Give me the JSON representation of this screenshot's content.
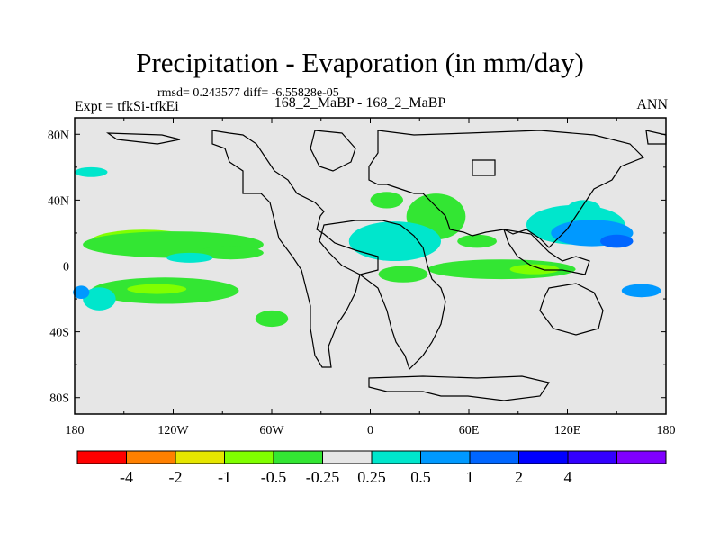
{
  "title": "Precipitation - Evaporation (in mm/day)",
  "stats_line": "rmsd= 0.243577 diff= -6.55828e-05",
  "subtitle": "168_2_MaBP - 168_2_MaBP",
  "experiment": "Expt = tfkSi-tfkEi",
  "season": "ANN",
  "colors": {
    "background": "#e6e6e6",
    "coast": "#000000"
  },
  "map": {
    "lon_ticks": [
      {
        "lon": -180,
        "label": "180"
      },
      {
        "lon": -120,
        "label": "120W"
      },
      {
        "lon": -60,
        "label": "60W"
      },
      {
        "lon": 0,
        "label": "0"
      },
      {
        "lon": 60,
        "label": "60E"
      },
      {
        "lon": 120,
        "label": "120E"
      },
      {
        "lon": 180,
        "label": "180"
      }
    ],
    "lat_ticks": [
      {
        "lat": 80,
        "label": "80N"
      },
      {
        "lat": 40,
        "label": "40N"
      },
      {
        "lat": 0,
        "label": "0"
      },
      {
        "lat": -40,
        "label": "40S"
      },
      {
        "lat": -80,
        "label": "80S"
      }
    ],
    "lon_range": [
      -180,
      180
    ],
    "lat_range": [
      -90,
      90
    ]
  },
  "colorbar": {
    "colors": [
      "#ff0000",
      "#ff8000",
      "#e6e600",
      "#80ff00",
      "#33e633",
      "#e6e6e6",
      "#00e6cc",
      "#0099ff",
      "#0066ff",
      "#0000ff",
      "#3300ff",
      "#8000ff"
    ],
    "labels": [
      "-4",
      "-2",
      "-1",
      "-0.5",
      "-0.25",
      "0.25",
      "0.5",
      "1",
      "2",
      "4"
    ]
  },
  "anomalies": [
    {
      "name": "pacific-north-yellow-core",
      "color": "#e6e600",
      "lon": -145,
      "lat": 13,
      "rlon": 18,
      "rlat": 4
    },
    {
      "name": "pacific-north-band",
      "color": "#80ff00",
      "lon": -138,
      "lat": 15,
      "rlon": 32,
      "rlat": 7
    },
    {
      "name": "pacific-north-band-green",
      "color": "#33e633",
      "lon": -120,
      "lat": 13,
      "rlon": 55,
      "rlat": 8
    },
    {
      "name": "pacific-north-band-east",
      "color": "#33e633",
      "lon": -85,
      "lat": 8,
      "rlon": 20,
      "rlat": 4
    },
    {
      "name": "pacific-south-band",
      "color": "#33e633",
      "lon": -125,
      "lat": -15,
      "rlon": 45,
      "rlat": 8
    },
    {
      "name": "pacific-south-yellow",
      "color": "#80ff00",
      "lon": -130,
      "lat": -14,
      "rlon": 18,
      "rlat": 3
    },
    {
      "name": "south-pacific-tail",
      "color": "#33e633",
      "lon": -60,
      "lat": -32,
      "rlon": 10,
      "rlat": 5
    },
    {
      "name": "west-pacific-cyan",
      "color": "#00e6cc",
      "lon": -165,
      "lat": -20,
      "rlon": 10,
      "rlat": 7
    },
    {
      "name": "west-pacific-blue",
      "color": "#0099ff",
      "lon": -176,
      "lat": -16,
      "rlon": 5,
      "rlat": 4
    },
    {
      "name": "east-pacific-cyan",
      "color": "#00e6cc",
      "lon": -110,
      "lat": 5,
      "rlon": 14,
      "rlat": 3
    },
    {
      "name": "north-atlantic-cyan",
      "color": "#00e6cc",
      "lon": -170,
      "lat": 57,
      "rlon": 10,
      "rlat": 3
    },
    {
      "name": "mediterranean-green",
      "color": "#33e633",
      "lon": 10,
      "lat": 40,
      "rlon": 10,
      "rlat": 5
    },
    {
      "name": "arabia-green",
      "color": "#33e633",
      "lon": 40,
      "lat": 30,
      "rlon": 18,
      "rlat": 14
    },
    {
      "name": "sahara-cyan",
      "color": "#00e6cc",
      "lon": 15,
      "lat": 15,
      "rlon": 28,
      "rlat": 12
    },
    {
      "name": "tropical-africa-green",
      "color": "#33e633",
      "lon": 20,
      "lat": -5,
      "rlon": 15,
      "rlat": 5
    },
    {
      "name": "indian-ocean-green",
      "color": "#33e633",
      "lon": 80,
      "lat": -2,
      "rlon": 45,
      "rlat": 6
    },
    {
      "name": "indian-ocean-band",
      "color": "#80ff00",
      "lon": 100,
      "lat": -2,
      "rlon": 15,
      "rlat": 3
    },
    {
      "name": "india-green",
      "color": "#33e633",
      "lon": 65,
      "lat": 15,
      "rlon": 12,
      "rlat": 4
    },
    {
      "name": "east-asia-cyan",
      "color": "#00e6cc",
      "lon": 125,
      "lat": 25,
      "rlon": 30,
      "rlat": 12
    },
    {
      "name": "north-pacific-blue",
      "color": "#0099ff",
      "lon": 135,
      "lat": 20,
      "rlon": 25,
      "rlat": 8
    },
    {
      "name": "north-pacific-dark",
      "color": "#0066ff",
      "lon": 150,
      "lat": 15,
      "rlon": 10,
      "rlat": 4
    },
    {
      "name": "south-pacific-blue",
      "color": "#0099ff",
      "lon": 165,
      "lat": -15,
      "rlon": 12,
      "rlat": 4
    },
    {
      "name": "northern-cyan",
      "color": "#00e6cc",
      "lon": 130,
      "lat": 35,
      "rlon": 10,
      "rlat": 5
    }
  ]
}
